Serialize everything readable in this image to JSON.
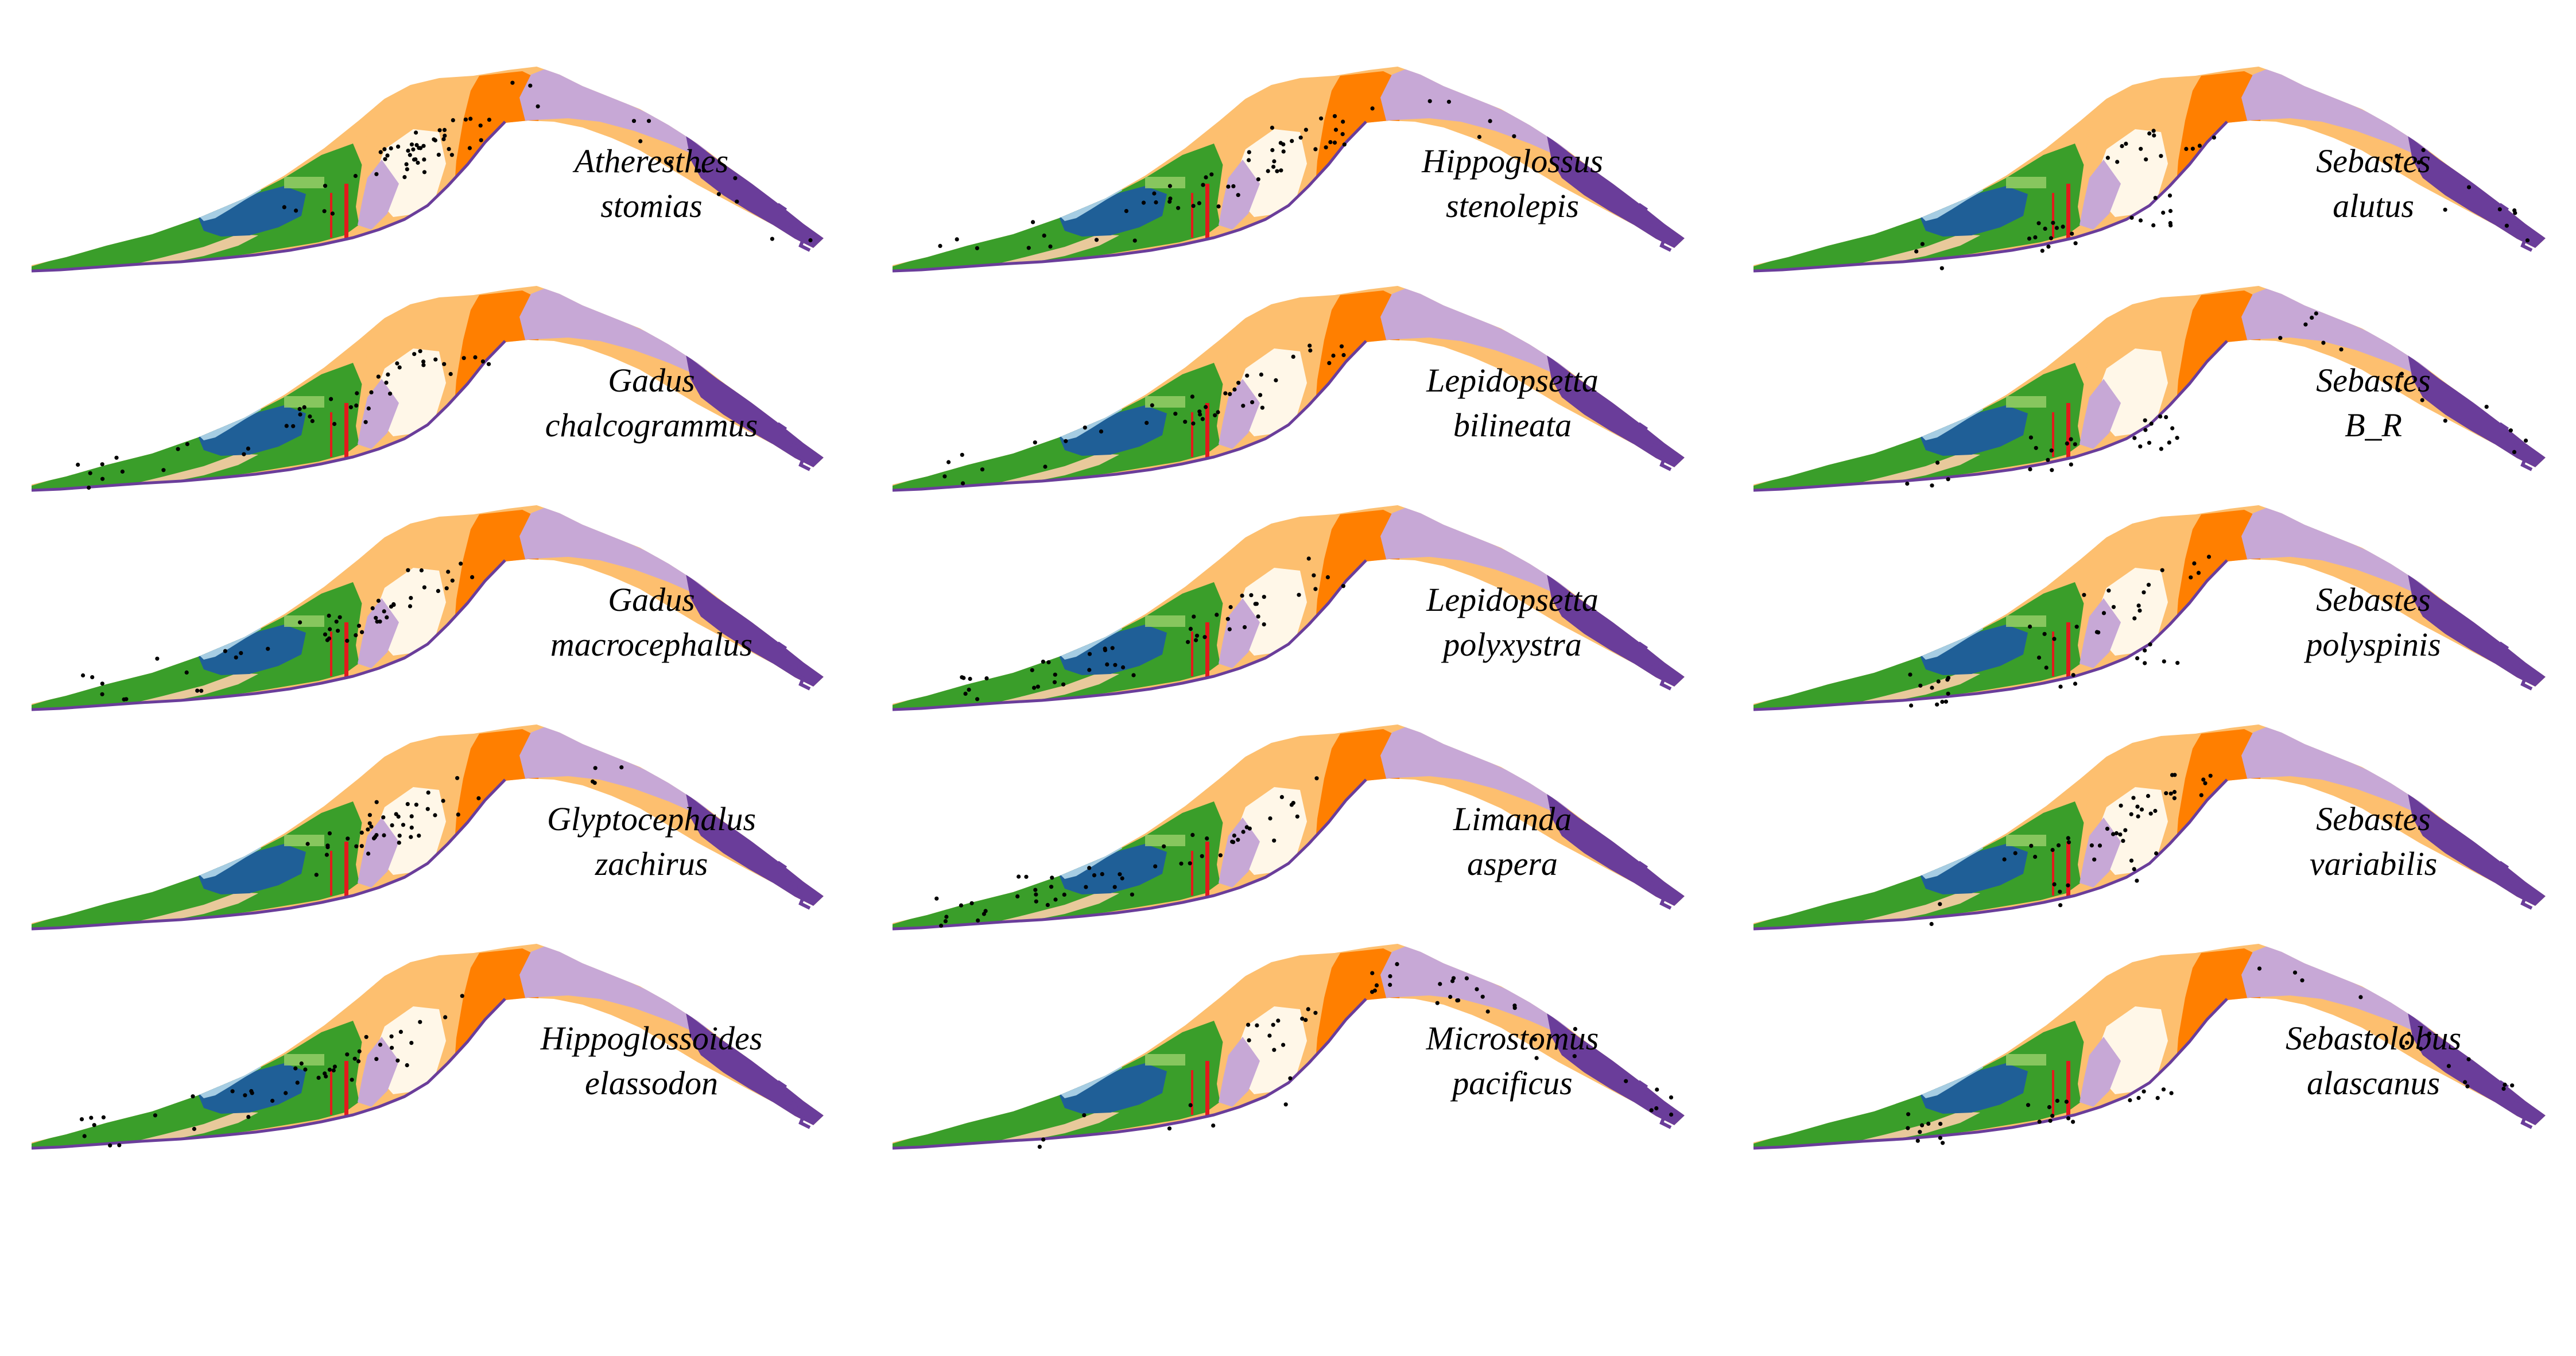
{
  "figure": {
    "background": "#ffffff",
    "legend": [],
    "palette": {
      "green": "#3a9e2a",
      "light_green": "#9bd06b",
      "dark_blue": "#1f5f97",
      "light_blue": "#a6cde3",
      "light_orange": "#fdbf6f",
      "orange": "#ff7f00",
      "red": "#e31a1c",
      "light_purple": "#c7a8d6",
      "purple": "#6a3d9a",
      "tan": "#e8c99b",
      "inner_pale": "#fff7e8",
      "points": "#000000"
    }
  },
  "panels": [
    {
      "id": "atheresthes-stomias",
      "genus": "Atheresthes",
      "species": "stomias",
      "column": 1,
      "row": 1
    },
    {
      "id": "gadus-chalcogrammus",
      "genus": "Gadus",
      "species": "chalcogrammus",
      "column": 1,
      "row": 2
    },
    {
      "id": "gadus-macrocephalus",
      "genus": "Gadus",
      "species": "macrocephalus",
      "column": 1,
      "row": 3
    },
    {
      "id": "glyptocephalus-zachirus",
      "genus": "Glyptocephalus",
      "species": "zachirus",
      "column": 1,
      "row": 4
    },
    {
      "id": "hippoglossoides-elassodon",
      "genus": "Hippoglossoides",
      "species": "elassodon",
      "column": 1,
      "row": 5
    },
    {
      "id": "hippoglossus-stenolepis",
      "genus": "Hippoglossus",
      "species": "stenolepis",
      "column": 2,
      "row": 1
    },
    {
      "id": "lepidopsetta-bilineata",
      "genus": "Lepidopsetta",
      "species": "bilineata",
      "column": 2,
      "row": 2
    },
    {
      "id": "lepidopsetta-polyxystra",
      "genus": "Lepidopsetta",
      "species": "polyxystra",
      "column": 2,
      "row": 3
    },
    {
      "id": "limanda-aspera",
      "genus": "Limanda",
      "species": "aspera",
      "column": 2,
      "row": 4
    },
    {
      "id": "microstomus-pacificus",
      "genus": "Microstomus",
      "species": "pacificus",
      "column": 2,
      "row": 5
    },
    {
      "id": "sebastes-alutus",
      "genus": "Sebastes",
      "species": "alutus",
      "column": 3,
      "row": 1
    },
    {
      "id": "sebastes-b-r",
      "genus": "Sebastes",
      "species": "B_R",
      "column": 3,
      "row": 2
    },
    {
      "id": "sebastes-polyspinis",
      "genus": "Sebastes",
      "species": "polyspinis",
      "column": 3,
      "row": 3
    },
    {
      "id": "sebastes-variabilis",
      "genus": "Sebastes",
      "species": "variabilis",
      "column": 3,
      "row": 4
    },
    {
      "id": "sebastolobus-alascanus",
      "genus": "Sebastolobus",
      "species": "alascanus",
      "column": 3,
      "row": 5
    }
  ]
}
